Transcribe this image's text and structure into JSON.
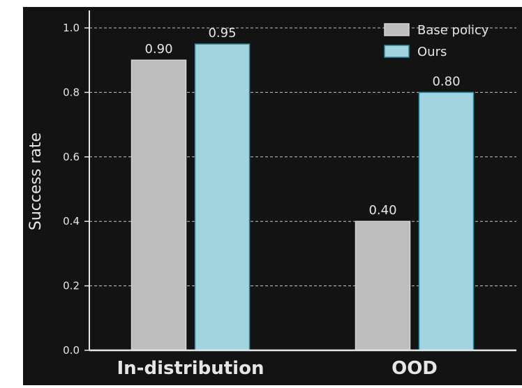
{
  "chart_data": {
    "type": "bar",
    "categories": [
      "In-distribution",
      "OOD"
    ],
    "series": [
      {
        "name": "Base policy",
        "values": [
          0.9,
          0.4
        ],
        "labels": [
          "0.90",
          "0.40"
        ],
        "color": "#bdbdbd",
        "edge": "#d6d6d6"
      },
      {
        "name": "Ours",
        "values": [
          0.95,
          0.8
        ],
        "labels": [
          "0.95",
          "0.80"
        ],
        "color": "#a2d4e0",
        "edge": "#2a8a9a"
      }
    ],
    "title": "",
    "xlabel": "",
    "ylabel": "Success rate",
    "ylim": [
      0,
      1.0
    ],
    "yticks": [
      "0.0",
      "0.2",
      "0.4",
      "0.6",
      "0.8",
      "1.0"
    ],
    "grid": "y-dashed",
    "legend_position": "top-right"
  },
  "colors": {
    "background": "#131313",
    "axis": "#e6e6e6",
    "text": "#e6e6e6",
    "grid": "#e6e6e6"
  }
}
